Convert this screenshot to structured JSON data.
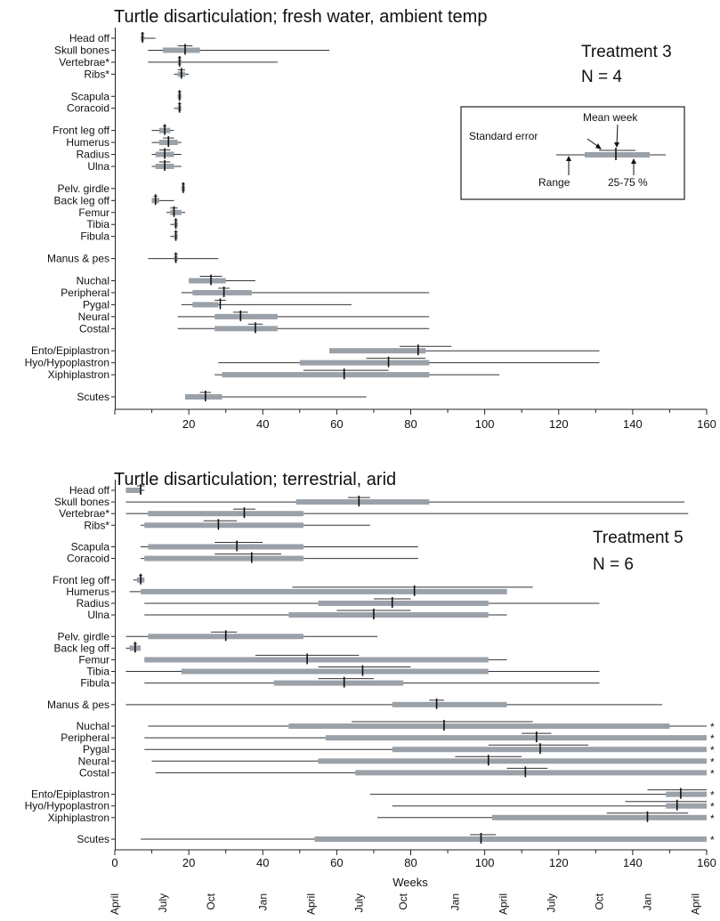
{
  "legend_key": {
    "mean_week": "Mean week",
    "standard_error": "Standard error",
    "range": "Range",
    "quartiles": "25-75 %"
  },
  "colors": {
    "bar": "#9aa1a8",
    "line": "#333333",
    "axis": "#222222"
  },
  "chart_data": [
    {
      "type": "box",
      "title": "Turtle disarticulation;  fresh water, ambient temp",
      "treatment": "Treatment 3",
      "n": "N = 4",
      "xlabel": "",
      "xlim": [
        0,
        160
      ],
      "xticks": [
        20,
        40,
        60,
        80,
        100,
        120,
        140,
        160
      ],
      "groups": [
        [
          "Head off",
          "Skull bones",
          "Vertebrae*",
          "Ribs*"
        ],
        [
          "Scapula",
          "Coracoid"
        ],
        [
          "Front leg off",
          "Humerus",
          "Radius",
          "Ulna"
        ],
        [
          "Pelv. girdle",
          "Back leg off",
          "Femur",
          "Tibia",
          "Fibula"
        ],
        [
          "Manus & pes"
        ],
        [
          "Nuchal",
          "Peripheral",
          "Pygal",
          "Neural",
          "Costal"
        ],
        [
          "Ento/Epiplastron",
          "Hyo/Hypoplastron",
          "Xiphiplastron"
        ],
        [
          "Scutes"
        ]
      ],
      "items": [
        {
          "label": "Head off",
          "min": 7,
          "q1": 7,
          "q3": 8,
          "mean": 7.5,
          "se_lo": 7,
          "se_hi": 8,
          "max": 11
        },
        {
          "label": "Skull bones",
          "min": 9,
          "q1": 13,
          "q3": 23,
          "mean": 19,
          "se_lo": 17,
          "se_hi": 21,
          "max": 58
        },
        {
          "label": "Vertebrae*",
          "min": 9,
          "q1": 17,
          "q3": 18,
          "mean": 17.5,
          "se_lo": 17,
          "se_hi": 18,
          "max": 44
        },
        {
          "label": "Ribs*",
          "min": 16,
          "q1": 17,
          "q3": 19,
          "mean": 18,
          "se_lo": 17,
          "se_hi": 19,
          "max": 20
        },
        {
          "label": "Scapula",
          "min": 17,
          "q1": 17,
          "q3": 18,
          "mean": 17.5,
          "se_lo": 17,
          "se_hi": 18,
          "max": 18
        },
        {
          "label": "Coracoid",
          "min": 16,
          "q1": 17,
          "q3": 18,
          "mean": 17.5,
          "se_lo": 17,
          "se_hi": 18,
          "max": 18
        },
        {
          "label": "Front leg off",
          "min": 10,
          "q1": 12,
          "q3": 15,
          "mean": 13.5,
          "se_lo": 13,
          "se_hi": 14,
          "max": 16
        },
        {
          "label": "Humerus",
          "min": 10,
          "q1": 12,
          "q3": 17,
          "mean": 14.5,
          "se_lo": 13,
          "se_hi": 16,
          "max": 18
        },
        {
          "label": "Radius",
          "min": 10,
          "q1": 11,
          "q3": 16,
          "mean": 13.5,
          "se_lo": 12,
          "se_hi": 15,
          "max": 18
        },
        {
          "label": "Ulna",
          "min": 10,
          "q1": 11,
          "q3": 16,
          "mean": 13.5,
          "se_lo": 12,
          "se_hi": 15,
          "max": 18
        },
        {
          "label": "Pelv. girdle",
          "min": 18,
          "q1": 18,
          "q3": 19,
          "mean": 18.5,
          "se_lo": 18,
          "se_hi": 19,
          "max": 19
        },
        {
          "label": "Back leg off",
          "min": 10,
          "q1": 10,
          "q3": 12,
          "mean": 11,
          "se_lo": 10.5,
          "se_hi": 11.5,
          "max": 16
        },
        {
          "label": "Femur",
          "min": 14,
          "q1": 15,
          "q3": 18,
          "mean": 16,
          "se_lo": 15,
          "se_hi": 17,
          "max": 19
        },
        {
          "label": "Tibia",
          "min": 15,
          "q1": 16,
          "q3": 17,
          "mean": 16.5,
          "se_lo": 16,
          "se_hi": 17,
          "max": 17
        },
        {
          "label": "Fibula",
          "min": 15,
          "q1": 16,
          "q3": 17,
          "mean": 16.5,
          "se_lo": 16,
          "se_hi": 17,
          "max": 17
        },
        {
          "label": "Manus & pes",
          "min": 9,
          "q1": 16,
          "q3": 17,
          "mean": 16.5,
          "se_lo": 16,
          "se_hi": 17,
          "max": 28
        },
        {
          "label": "Nuchal",
          "min": 20,
          "q1": 20,
          "q3": 30,
          "mean": 26,
          "se_lo": 23,
          "se_hi": 29,
          "max": 38
        },
        {
          "label": "Peripheral",
          "min": 18,
          "q1": 21,
          "q3": 37,
          "mean": 29.5,
          "se_lo": 28,
          "se_hi": 31,
          "max": 85
        },
        {
          "label": "Pygal",
          "min": 18,
          "q1": 21,
          "q3": 28,
          "mean": 28.5,
          "se_lo": 27,
          "se_hi": 30,
          "max": 64
        },
        {
          "label": "Neural",
          "min": 17,
          "q1": 27,
          "q3": 44,
          "mean": 34,
          "se_lo": 32,
          "se_hi": 36,
          "max": 85
        },
        {
          "label": "Costal",
          "min": 17,
          "q1": 27,
          "q3": 44,
          "mean": 38,
          "se_lo": 36,
          "se_hi": 40,
          "max": 85
        },
        {
          "label": "Ento/Epiplastron",
          "min": 58,
          "q1": 58,
          "q3": 84,
          "mean": 82,
          "se_lo": 77,
          "se_hi": 91,
          "max": 131
        },
        {
          "label": "Hyo/Hypoplastron",
          "min": 28,
          "q1": 50,
          "q3": 85,
          "mean": 74,
          "se_lo": 68,
          "se_hi": 84,
          "max": 131
        },
        {
          "label": "Xiphiplastron",
          "min": 27,
          "q1": 29,
          "q3": 85,
          "mean": 62,
          "se_lo": 51,
          "se_hi": 74,
          "max": 104
        },
        {
          "label": "Scutes",
          "min": 19,
          "q1": 19,
          "q3": 29,
          "mean": 24.5,
          "se_lo": 23,
          "se_hi": 26,
          "max": 68
        }
      ]
    },
    {
      "type": "box",
      "title": "Turtle disarticulation;  terrestrial, arid",
      "treatment": "Treatment 5",
      "n": "N = 6",
      "xlabel": "Weeks",
      "xlim": [
        0,
        160
      ],
      "xticks": [
        0,
        20,
        40,
        60,
        80,
        100,
        120,
        140,
        160
      ],
      "months": [
        {
          "week": 0,
          "label": "April"
        },
        {
          "week": 13,
          "label": "July"
        },
        {
          "week": 26,
          "label": "Oct"
        },
        {
          "week": 40,
          "label": "Jan"
        },
        {
          "week": 53,
          "label": "April"
        },
        {
          "week": 66,
          "label": "July"
        },
        {
          "week": 78,
          "label": "Oct"
        },
        {
          "week": 92,
          "label": "Jan"
        },
        {
          "week": 105,
          "label": "April"
        },
        {
          "week": 118,
          "label": "July"
        },
        {
          "week": 131,
          "label": "Oct"
        },
        {
          "week": 144,
          "label": "Jan"
        },
        {
          "week": 157,
          "label": "April"
        }
      ],
      "groups": [
        [
          "Head off",
          "Skull bones",
          "Vertebrae*",
          "Ribs*"
        ],
        [
          "Scapula",
          "Coracoid"
        ],
        [
          "Front leg off",
          "Humerus",
          "Radius",
          "Ulna"
        ],
        [
          "Pelv. girdle",
          "Back leg off",
          "Femur",
          "Tibia",
          "Fibula"
        ],
        [
          "Manus & pes"
        ],
        [
          "Nuchal",
          "Peripheral",
          "Pygal",
          "Neural",
          "Costal"
        ],
        [
          "Ento/Epiplastron",
          "Hyo/Hypoplastron",
          "Xiphiplastron"
        ],
        [
          "Scutes"
        ]
      ],
      "items": [
        {
          "label": "Head off",
          "min": 3,
          "q1": 3,
          "q3": 7,
          "mean": 7,
          "se_lo": 6,
          "se_hi": 8,
          "max": 8
        },
        {
          "label": "Skull bones",
          "min": 3,
          "q1": 49,
          "q3": 85,
          "mean": 66,
          "se_lo": 63,
          "se_hi": 69,
          "max": 154
        },
        {
          "label": "Vertebrae*",
          "min": 3,
          "q1": 9,
          "q3": 51,
          "mean": 35,
          "se_lo": 32,
          "se_hi": 38,
          "max": 155
        },
        {
          "label": "Ribs*",
          "min": 7,
          "q1": 8,
          "q3": 51,
          "mean": 28,
          "se_lo": 24,
          "se_hi": 33,
          "max": 69
        },
        {
          "label": "Scapula",
          "min": 7,
          "q1": 9,
          "q3": 51,
          "mean": 33,
          "se_lo": 27,
          "se_hi": 40,
          "max": 82
        },
        {
          "label": "Coracoid",
          "min": 7,
          "q1": 8,
          "q3": 51,
          "mean": 37,
          "se_lo": 27,
          "se_hi": 45,
          "max": 82
        },
        {
          "label": "Front leg off",
          "min": 5,
          "q1": 6,
          "q3": 8,
          "mean": 7,
          "se_lo": 6.5,
          "se_hi": 7.5,
          "max": 8
        },
        {
          "label": "Humerus",
          "min": 4,
          "q1": 7,
          "q3": 106,
          "mean": 81,
          "se_lo": 48,
          "se_hi": 113,
          "max": 106
        },
        {
          "label": "Radius",
          "min": 8,
          "q1": 55,
          "q3": 101,
          "mean": 75,
          "se_lo": 70,
          "se_hi": 80,
          "max": 131
        },
        {
          "label": "Ulna",
          "min": 8,
          "q1": 47,
          "q3": 101,
          "mean": 70,
          "se_lo": 60,
          "se_hi": 80,
          "max": 106
        },
        {
          "label": "Pelv. girdle",
          "min": 3,
          "q1": 9,
          "q3": 51,
          "mean": 30,
          "se_lo": 26,
          "se_hi": 33,
          "max": 71
        },
        {
          "label": "Back leg off",
          "min": 3,
          "q1": 4,
          "q3": 7,
          "mean": 5.5,
          "se_lo": 5,
          "se_hi": 6,
          "max": 7
        },
        {
          "label": "Femur",
          "min": 8,
          "q1": 8,
          "q3": 101,
          "mean": 52,
          "se_lo": 38,
          "se_hi": 66,
          "max": 106
        },
        {
          "label": "Tibia",
          "min": 3,
          "q1": 18,
          "q3": 101,
          "mean": 67,
          "se_lo": 55,
          "se_hi": 80,
          "max": 131
        },
        {
          "label": "Fibula",
          "min": 8,
          "q1": 43,
          "q3": 78,
          "mean": 62,
          "se_lo": 55,
          "se_hi": 70,
          "max": 131
        },
        {
          "label": "Manus & pes",
          "min": 3,
          "q1": 75,
          "q3": 106,
          "mean": 87,
          "se_lo": 85,
          "se_hi": 89,
          "max": 148
        },
        {
          "label": "Nuchal",
          "min": 9,
          "q1": 47,
          "q3": 150,
          "mean": 89,
          "se_lo": 64,
          "se_hi": 113,
          "max": 160
        },
        {
          "label": "Peripheral",
          "min": 8,
          "q1": 57,
          "q3": 160,
          "mean": 114,
          "se_lo": 110,
          "se_hi": 118,
          "max": 160
        },
        {
          "label": "Pygal",
          "min": 8,
          "q1": 75,
          "q3": 160,
          "mean": 115,
          "se_lo": 101,
          "se_hi": 128,
          "max": 160
        },
        {
          "label": "Neural",
          "min": 10,
          "q1": 55,
          "q3": 160,
          "mean": 101,
          "se_lo": 92,
          "se_hi": 110,
          "max": 160
        },
        {
          "label": "Costal",
          "min": 11,
          "q1": 65,
          "q3": 160,
          "mean": 111,
          "se_lo": 106,
          "se_hi": 117,
          "max": 160
        },
        {
          "label": "Ento/Epiplastron",
          "min": 69,
          "q1": 149,
          "q3": 160,
          "mean": 153,
          "se_lo": 144,
          "se_hi": 160,
          "max": 160
        },
        {
          "label": "Hyo/Hypoplastron",
          "min": 75,
          "q1": 149,
          "q3": 160,
          "mean": 152,
          "se_lo": 138,
          "se_hi": 160,
          "max": 160
        },
        {
          "label": "Xiphiplastron",
          "min": 71,
          "q1": 102,
          "q3": 160,
          "mean": 144,
          "se_lo": 133,
          "se_hi": 155,
          "max": 160
        },
        {
          "label": "Scutes",
          "min": 7,
          "q1": 54,
          "q3": 160,
          "mean": 99,
          "se_lo": 96,
          "se_hi": 103,
          "max": 160
        }
      ],
      "censored_marker": "*",
      "censored": [
        "Nuchal",
        "Peripheral",
        "Pygal",
        "Neural",
        "Costal",
        "Ento/Epiplastron",
        "Hyo/Hypoplastron",
        "Xiphiplastron",
        "Scutes"
      ]
    }
  ]
}
